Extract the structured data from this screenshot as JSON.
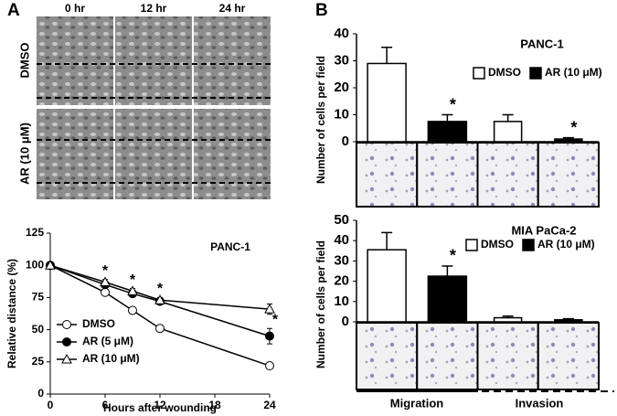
{
  "panel_labels": [
    "A",
    "B"
  ],
  "wound_images": {
    "columns": [
      "0 hr",
      "12 hr",
      "24 hr"
    ],
    "rows": [
      "DMSO",
      "AR (10 μM)"
    ]
  },
  "x_groups": [
    "Migration",
    "Invasion"
  ],
  "chart_data": [
    {
      "type": "line",
      "title": "PANC-1",
      "x_label": "Hours after wounding",
      "y_label": "Relative distance (%)",
      "x": [
        0,
        6,
        9,
        12,
        24
      ],
      "xlim": [
        0,
        24
      ],
      "xticks": [
        0,
        6,
        12,
        18,
        24
      ],
      "ylim": [
        0,
        125
      ],
      "yticks": [
        0,
        25,
        50,
        75,
        100,
        125
      ],
      "legend": "lower left",
      "series": [
        {
          "name": "DMSO",
          "color": "#000000",
          "marker": "circle",
          "fill": "#ffffff",
          "values": [
            100,
            79,
            65,
            51,
            22
          ],
          "errors": [
            0,
            2,
            2,
            2,
            2
          ],
          "significance": [
            null,
            null,
            null,
            null,
            null
          ]
        },
        {
          "name": "AR (5 μM)",
          "color": "#000000",
          "marker": "circle",
          "fill": "#000000",
          "values": [
            100,
            85,
            78,
            72,
            45
          ],
          "errors": [
            0,
            2,
            2,
            2,
            6
          ],
          "significance": [
            null,
            null,
            null,
            null,
            "*"
          ]
        },
        {
          "name": "AR (10 μM)",
          "color": "#000000",
          "marker": "triangle",
          "fill": "#ffffff",
          "values": [
            100,
            87,
            80,
            73,
            66
          ],
          "errors": [
            0,
            2,
            2,
            2,
            4
          ],
          "significance": [
            null,
            "*",
            "*",
            "*",
            null
          ]
        }
      ]
    },
    {
      "type": "bar",
      "title": "PANC-1",
      "y_label": "Number of cells per field",
      "ylim": [
        0,
        40
      ],
      "yticks": [
        0,
        10,
        20,
        30,
        40
      ],
      "series": [
        {
          "name": "DMSO",
          "color": "#ffffff",
          "values": [
            29,
            7.5
          ],
          "errors": [
            6,
            2.5
          ],
          "significance": [
            null,
            null
          ]
        },
        {
          "name": "AR (10 μM)",
          "color": "#000000",
          "values": [
            7.5,
            1
          ],
          "errors": [
            2.5,
            0.5
          ],
          "significance": [
            "*",
            "*"
          ]
        }
      ]
    },
    {
      "type": "bar",
      "title": "MIA PaCa-2",
      "y_label": "Number of cells per field",
      "ylim": [
        0,
        50
      ],
      "yticks": [
        0,
        10,
        20,
        30,
        40,
        50
      ],
      "series": [
        {
          "name": "DMSO",
          "color": "#ffffff",
          "values": [
            35.5,
            2
          ],
          "errors": [
            8.5,
            0.8
          ],
          "significance": [
            null,
            null
          ]
        },
        {
          "name": "AR (10 μM)",
          "color": "#000000",
          "values": [
            22.5,
            1
          ],
          "errors": [
            5,
            0.5
          ],
          "significance": [
            "*",
            null
          ]
        }
      ]
    }
  ]
}
